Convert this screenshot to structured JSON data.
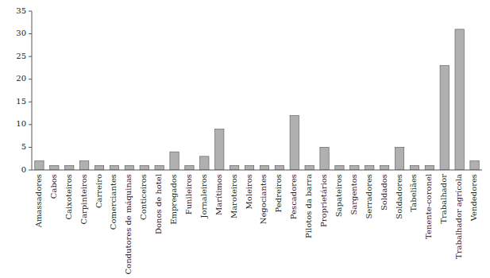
{
  "chart_data": {
    "type": "bar",
    "categories": [
      "Amassadores",
      "Cabos",
      "Caixoteiros",
      "Carpinteiros",
      "Carreiro",
      "Comerciantes",
      "Condutores de máquinas",
      "Conticeiros",
      "Donos de hotel",
      "Empregados",
      "Funileiros",
      "Jornaleiros",
      "Marítimos",
      "Maroteiros",
      "Moleiros",
      "Negociantes",
      "Pedreiros",
      "Pescadores",
      "Pilotos da barra",
      "Proprietários",
      "Sapateiros",
      "Sargentos",
      "Serradores",
      "Soldados",
      "Soldadores",
      "Tabeliães",
      "Tenente-coronel",
      "Trabalhador",
      "Trabalhador agrícola",
      "Vendedores"
    ],
    "values": [
      2,
      1,
      1,
      2,
      1,
      1,
      1,
      1,
      1,
      4,
      1,
      3,
      9,
      1,
      1,
      1,
      1,
      12,
      1,
      5,
      1,
      1,
      1,
      1,
      5,
      1,
      1,
      23,
      31,
      2
    ],
    "color": "#b0b0b0",
    "ylim": [
      0,
      35
    ],
    "yticks": [
      0,
      5,
      10,
      15,
      20,
      25,
      30,
      35
    ],
    "grid": false
  }
}
